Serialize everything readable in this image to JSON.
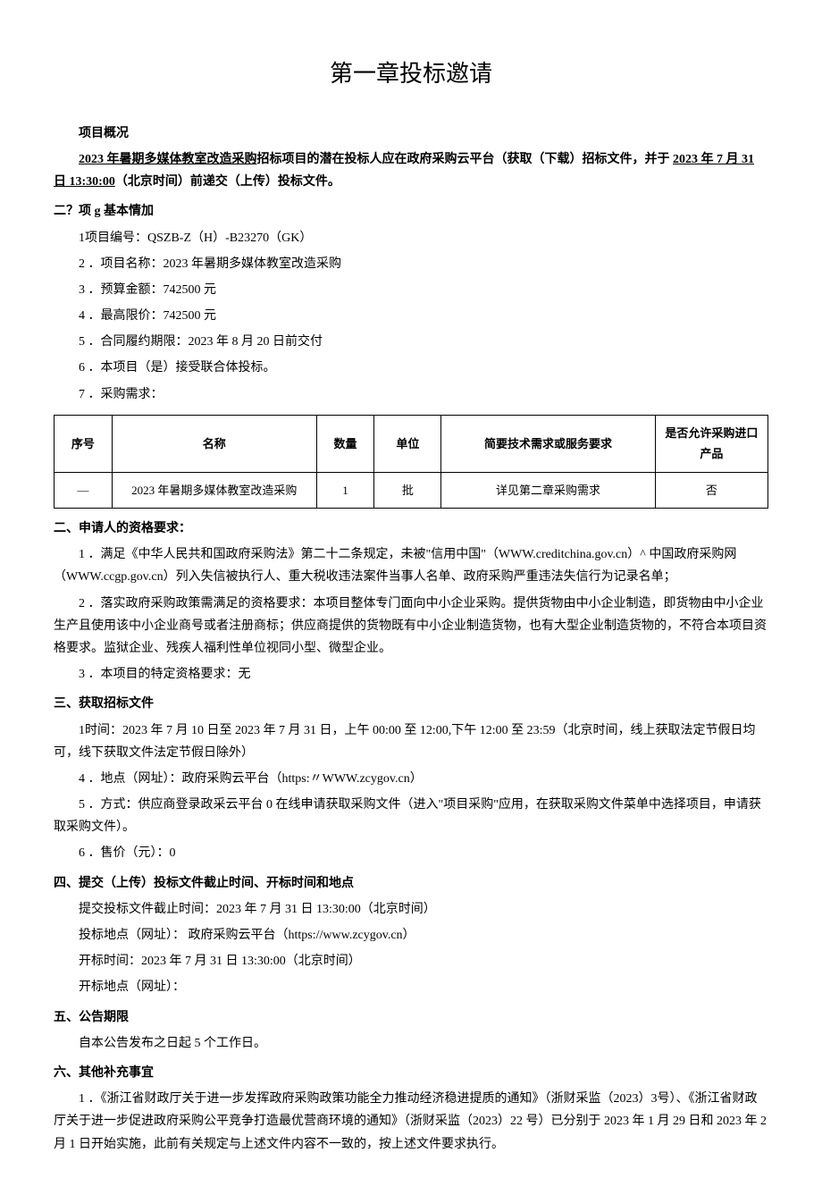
{
  "title": "第一章投标邀请",
  "overview_label": "项目概况",
  "intro_part1": "2023 年暑期多媒体教室改造采购",
  "intro_part2": "招标项目的潜在投标人应在政府采购云平台（获取（下载）招标文件，并于 ",
  "intro_part3": "2023 年 7 月 31 日 13:30:00",
  "intro_part4": "（北京时间）前递交（上传）投标文件。",
  "section2_header": "二？项 g 基本情加",
  "basic": {
    "item1": "1项目编号：QSZB-Z（H）-B23270（GK）",
    "item2": "2 ．项目名称：2023 年暑期多媒体教室改造采购",
    "item3": "3 ．预算金额：742500 元",
    "item4": "4 ．最高限价：742500 元",
    "item5": "5 ．合同履约期限：2023 年 8 月 20 日前交付",
    "item6": "6 ．本项目（是）接受联合体投标。",
    "item7": "7 ．采购需求："
  },
  "table": {
    "headers": {
      "seq": "序号",
      "name": "名称",
      "qty": "数量",
      "unit": "单位",
      "req": "简要技术需求或服务要求",
      "import": "是否允许采购进口产品"
    },
    "row1": {
      "seq": "—",
      "name": "2023 年暑期多媒体教室改造采购",
      "qty": "1",
      "unit": "批",
      "req": "详见第二章采购需求",
      "import": "否"
    }
  },
  "applicant_header": "二、申请人的资格要求：",
  "applicant": {
    "item1": "1 ．满足《中华人民共和国政府采购法》第二十二条规定，未被\"信用中国\"（WWW.creditchina.gov.cn）^ 中国政府采购网（WWW.ccgp.gov.cn）列入失信被执行人、重大税收违法案件当事人名单、政府采购严重违法失信行为记录名单；",
    "item2": "2 ．落实政府采购政策需满足的资格要求：本项目整体专门面向中小企业采购。提供货物由中小企业制造，即货物由中小企业生产且使用该中小企业商号或者注册商标；供应商提供的货物既有中小企业制造货物，也有大型企业制造货物的，不符合本项目资格要求。监狱企业、残疾人福利性单位视同小型、微型企业。",
    "item3": "3       ．本项目的特定资格要求：无"
  },
  "obtain_header": "三、获取招标文件",
  "obtain": {
    "item1": "1时间：2023 年 7 月 10 日至 2023 年 7 月 31 日，上午 00:00 至 12:00,下午 12:00 至 23:59（北京时间，线上获取法定节假日均可，线下获取文件法定节假日除外）",
    "item2": "4       ．地点（网址）：政府采购云平台（https:〃WWW.zcygov.cn）",
    "item3": "5 ．方式：供应商登录政采云平台 0 在线申请获取采购文件（进入\"项目采购\"应用，在获取采购文件菜单中选择项目，申请获取采购文件）。",
    "item4": "6       ．售价（元）：0"
  },
  "submit_header": "四、提交（上传）投标文件截止时间、开标时间和地点",
  "submit": {
    "item1": "提交投标文件截止时间：2023 年 7 月 31 日 13:30:00（北京时间）",
    "item2": "投标地点（网址）： 政府采购云平台（https://www.zcygov.cn）",
    "item3": "开标时间：2023 年 7 月 31 日 13:30:00（北京时间）",
    "item4": "开标地点（网址）："
  },
  "period_header": "五、公告期限",
  "period_text": "自本公告发布之日起 5 个工作日。",
  "other_header": "六、其他补充事宜",
  "other_text": "1 ．《浙江省财政厅关于进一步发挥政府采购政策功能全力推动经济稳进提质的通知》（浙财采监（2023）3号）、《浙江省财政厅关于进一步促进政府采购公平竞争打造最优营商环境的通知》（浙财采监（2023）22 号）已分别于 2023 年 1 月 29 日和 2023 年 2 月 1 日开始实施，此前有关规定与上述文件内容不一致的，按上述文件要求执行。"
}
